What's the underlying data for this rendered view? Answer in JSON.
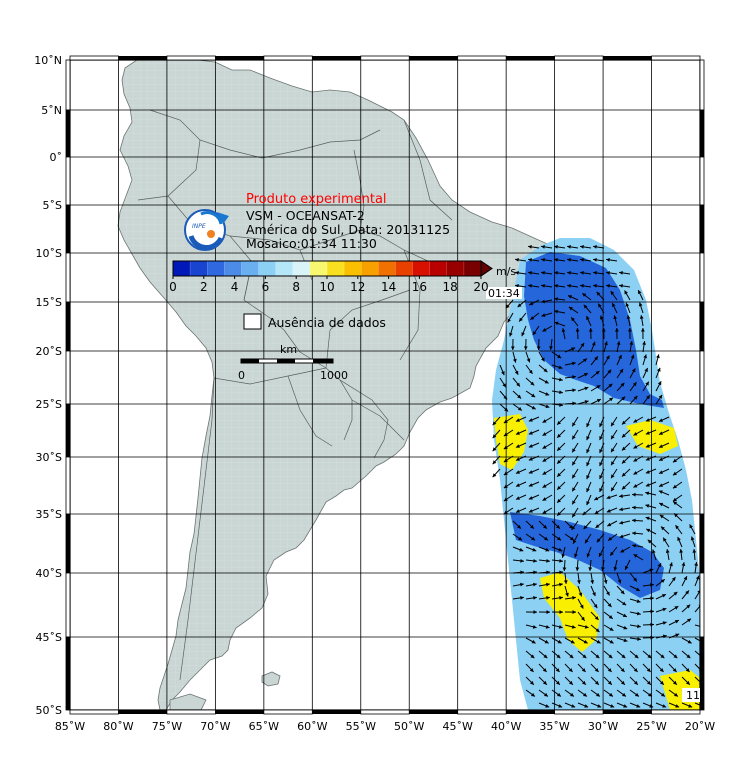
{
  "legend": {
    "title": "Produto experimental",
    "line1": "VSM - OCEANSAT-2",
    "line2": "América do Sul, Data: 20131125",
    "line3": "Mosaico:01:34 11:30",
    "unit": "m/s",
    "time_tag": "01:34",
    "nodata_label": "Ausência de dados",
    "scalebar_unit": "km",
    "scalebar_start": "0",
    "scalebar_end": "1000",
    "colorbar_ticks": [
      "0",
      "2",
      "4",
      "6",
      "8",
      "10",
      "12",
      "14",
      "16",
      "18",
      "20"
    ],
    "colorbar_colors": [
      "#0018b8",
      "#1844d0",
      "#3068e0",
      "#4c8ce8",
      "#6ab0f0",
      "#8cd0f4",
      "#b4e8f8",
      "#d8f4f8",
      "#f8f870",
      "#f8e020",
      "#f8c000",
      "#f8a000",
      "#f07000",
      "#e84000",
      "#d81000",
      "#b80000",
      "#980000",
      "#780000"
    ]
  },
  "axes": {
    "lon_labels": [
      "85˚W",
      "80˚W",
      "75˚W",
      "70˚W",
      "65˚W",
      "60˚W",
      "55˚W",
      "50˚W",
      "45˚W",
      "40˚W",
      "35˚W",
      "30˚W",
      "25˚W",
      "20˚W"
    ],
    "lat_labels": [
      "10˚N",
      "5˚N",
      "0˚",
      "5˚S",
      "10˚S",
      "15˚S",
      "20˚S",
      "25˚S",
      "30˚S",
      "35˚S",
      "40˚S",
      "45˚S",
      "50˚S"
    ]
  },
  "corner_tag": "11",
  "colors": {
    "land": "#c9d6d4",
    "ocean": "#ffffff",
    "grid": "#000000",
    "light_wind": "#8cd0f4",
    "strong_wind": "#1a5ad8",
    "calm": "#f8f000"
  }
}
